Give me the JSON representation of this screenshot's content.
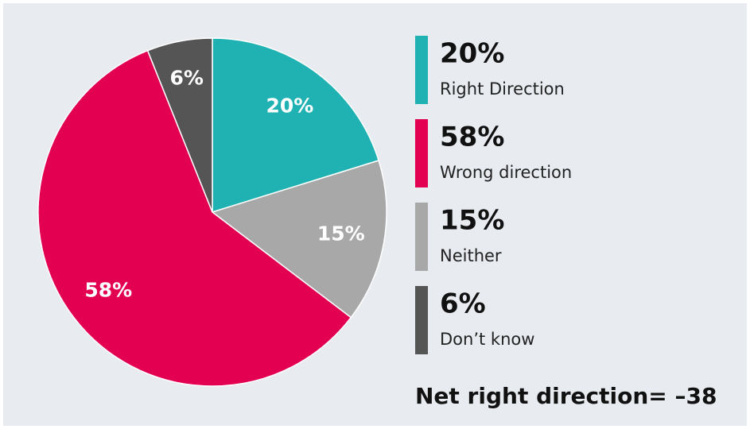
{
  "chart_data": {
    "type": "pie",
    "categories": [
      "Right Direction",
      "Wrong direction",
      "Neither",
      "Don’t know"
    ],
    "values": [
      20,
      58,
      15,
      6
    ],
    "value_labels": [
      "20%",
      "58%",
      "15%",
      "6%"
    ],
    "colors": [
      "#20b2b3",
      "#e30051",
      "#a8a8a8",
      "#555555"
    ],
    "annotation": "Net right direction= –38"
  }
}
